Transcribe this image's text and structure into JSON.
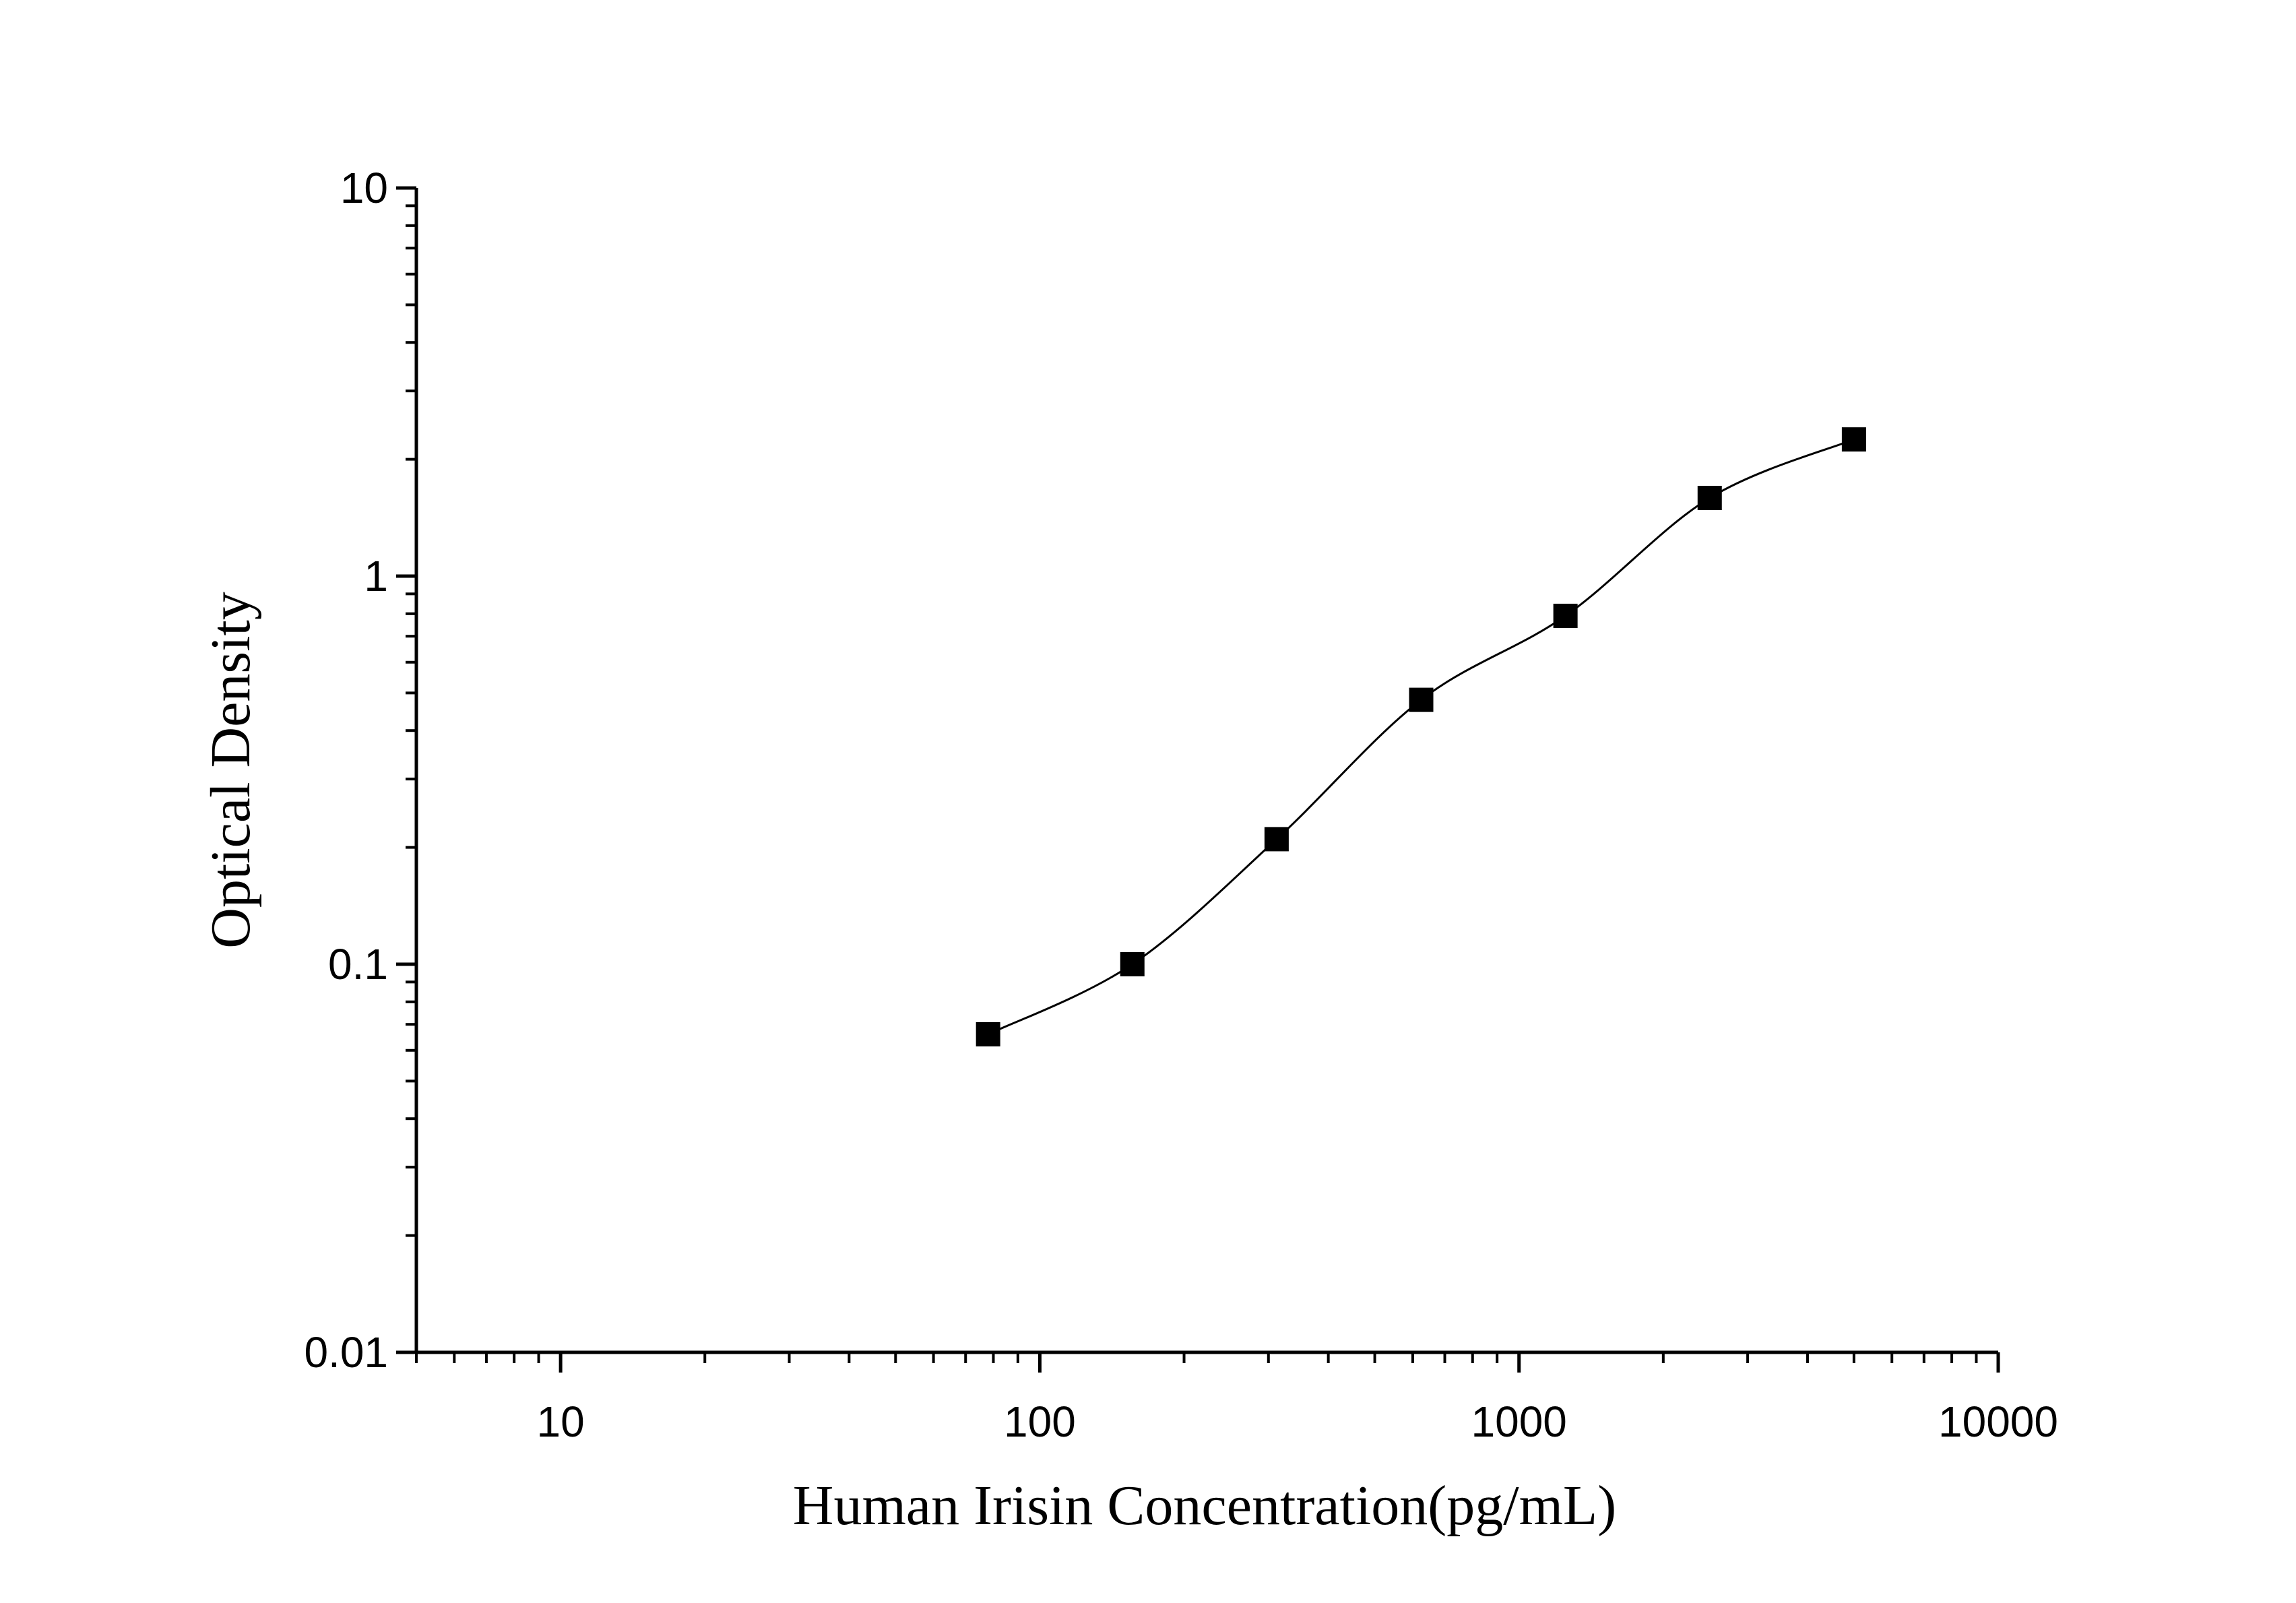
{
  "chart_data": {
    "type": "line",
    "xlabel": "Human Irisin Concentration(pg/mL)",
    "ylabel": "Optical Density",
    "x_scale": "log",
    "y_scale": "log",
    "xlim": [
      5,
      10000
    ],
    "ylim": [
      0.01,
      10
    ],
    "x_ticks": [
      {
        "value": 10,
        "label": "10"
      },
      {
        "value": 100,
        "label": "100"
      },
      {
        "value": 1000,
        "label": "1000"
      },
      {
        "value": 10000,
        "label": "10000"
      }
    ],
    "y_ticks": [
      {
        "value": 0.01,
        "label": "0.01"
      },
      {
        "value": 0.1,
        "label": "0.1"
      },
      {
        "value": 1,
        "label": "1"
      },
      {
        "value": 10,
        "label": "10"
      }
    ],
    "grid": false,
    "legend": "none",
    "marker": "square",
    "color": "#000000",
    "series": [
      {
        "x": [
          78,
          156,
          312,
          625,
          1250,
          2500,
          5000
        ],
        "y": [
          0.066,
          0.1,
          0.21,
          0.48,
          0.79,
          1.59,
          2.25
        ]
      }
    ]
  }
}
